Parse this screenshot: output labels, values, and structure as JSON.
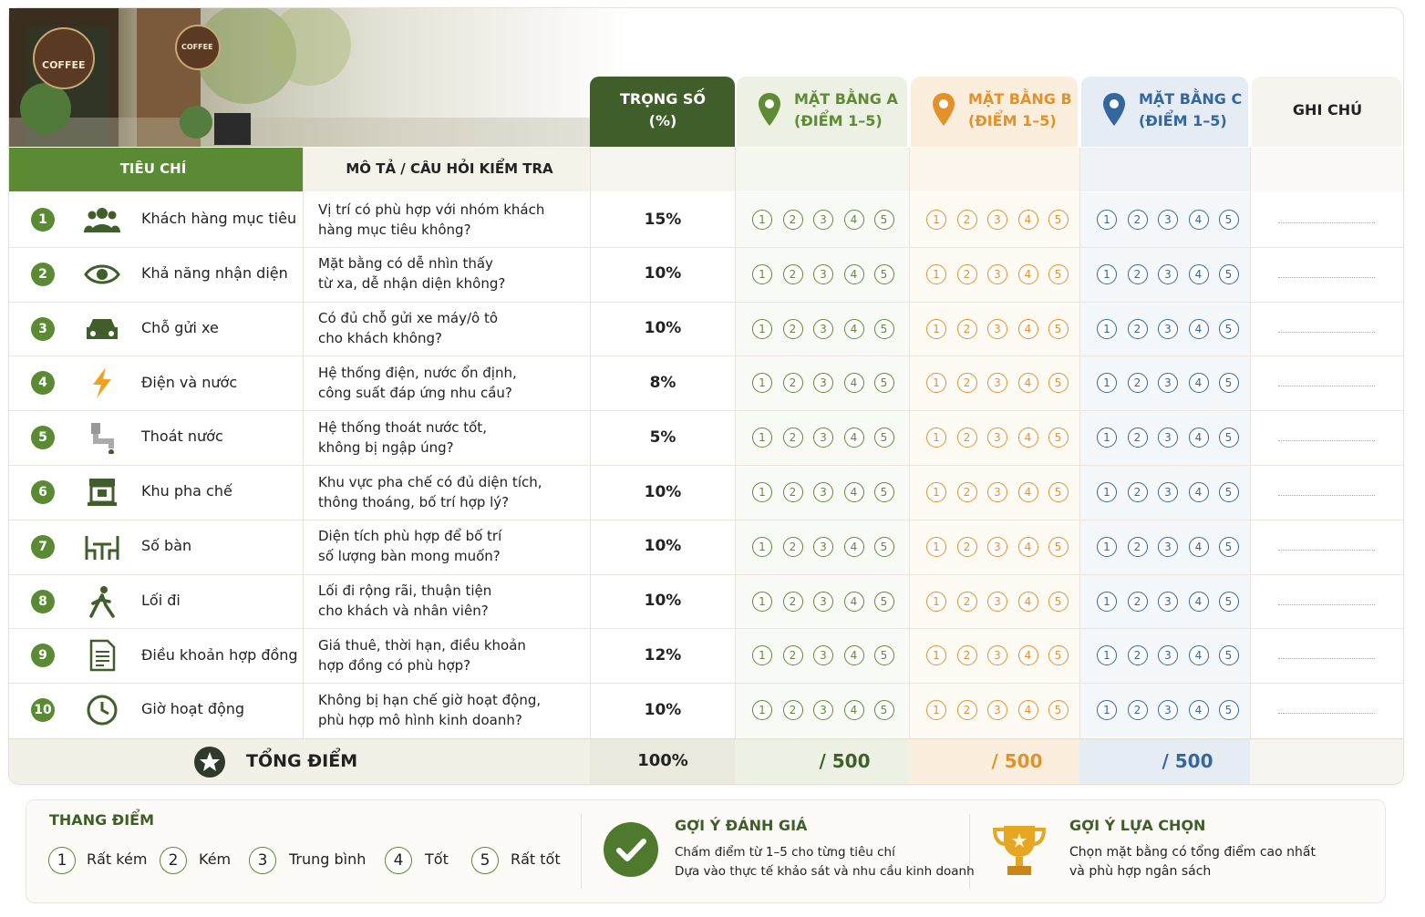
{
  "banner": {
    "sign": "COFFEE"
  },
  "header": {
    "weight": {
      "title": "TRỌNG SỐ",
      "unit": "(%)"
    },
    "sites": [
      {
        "title": "MẶT BẰNG A",
        "unit": "(ĐIỂM 1–5)"
      },
      {
        "title": "MẶT BẰNG B",
        "unit": "(ĐIỂM 1–5)"
      },
      {
        "title": "MẶT BẰNG C",
        "unit": "(ĐIỂM 1–5)"
      }
    ],
    "note": "GHI CHÚ",
    "criteria": "TIÊU CHÍ",
    "description": "MÔ TẢ / CÂU HỎI KIỂM TRA"
  },
  "scale": [
    1,
    2,
    3,
    4,
    5
  ],
  "rows": [
    {
      "number": 1,
      "name": "Khách hàng mục tiêu",
      "description": [
        "Vị trí có phù hợp với nhóm khách",
        "hàng mục tiêu không?"
      ],
      "weight": "15%"
    },
    {
      "number": 2,
      "name": "Khả năng nhận diện",
      "description": [
        "Mặt bằng có dễ nhìn thấy",
        "từ xa, dễ nhận diện không?"
      ],
      "weight": "10%"
    },
    {
      "number": 3,
      "name": "Chỗ gửi xe",
      "description": [
        "Có đủ chỗ gửi xe máy/ô tô",
        "cho khách không?"
      ],
      "weight": "10%"
    },
    {
      "number": 4,
      "name": "Điện và nước",
      "description": [
        "Hệ thống điện, nước ổn định,",
        "công suất đáp ứng nhu cầu?"
      ],
      "weight": "8%"
    },
    {
      "number": 5,
      "name": "Thoát nước",
      "description": [
        "Hệ thống thoát nước tốt,",
        "không bị ngập úng?"
      ],
      "weight": "5%"
    },
    {
      "number": 6,
      "name": "Khu pha chế",
      "description": [
        "Khu vực pha chế có đủ diện tích,",
        "thông thoáng, bố trí hợp lý?"
      ],
      "weight": "10%"
    },
    {
      "number": 7,
      "name": "Số bàn",
      "description": [
        "Diện tích phù hợp để bố trí",
        "số lượng bàn mong muốn?"
      ],
      "weight": "10%"
    },
    {
      "number": 8,
      "name": "Lối đi",
      "description": [
        "Lối đi rộng rãi, thuận tiện",
        "cho khách và nhân viên?"
      ],
      "weight": "10%"
    },
    {
      "number": 9,
      "name": "Điều khoản hợp đồng",
      "description": [
        "Giá thuê, thời hạn, điều khoản",
        "hợp đồng có phù hợp?"
      ],
      "weight": "12%"
    },
    {
      "number": 10,
      "name": "Giờ hoạt động",
      "description": [
        "Không bị hạn chế giờ hoạt động,",
        "phù hợp mô hình kinh doanh?"
      ],
      "weight": "10%"
    }
  ],
  "total": {
    "label": "TỔNG ĐIỂM",
    "weight": "100%",
    "sites": [
      "/ 500",
      "/ 500",
      "/ 500"
    ]
  },
  "footer": {
    "scale_title": "THANG ĐIỂM",
    "scale_items": [
      {
        "number": 1,
        "label": "Rất kém"
      },
      {
        "number": 2,
        "label": "Kém"
      },
      {
        "number": 3,
        "label": "Trung bình"
      },
      {
        "number": 4,
        "label": "Tốt"
      },
      {
        "number": 5,
        "label": "Rất tốt"
      }
    ],
    "evaluation": {
      "title": "GỢI Ý ĐÁNH GIÁ",
      "lines": [
        "Chấm điểm từ 1–5 cho từng tiêu chí",
        "Dựa vào thực tế khảo sát và nhu cầu kinh doanh"
      ]
    },
    "selection": {
      "title": "GỢI Ý LỰA CHỌN",
      "lines": [
        "Chọn mặt bằng có tổng điểm cao nhất",
        "và phù hợp ngân sách"
      ]
    }
  }
}
